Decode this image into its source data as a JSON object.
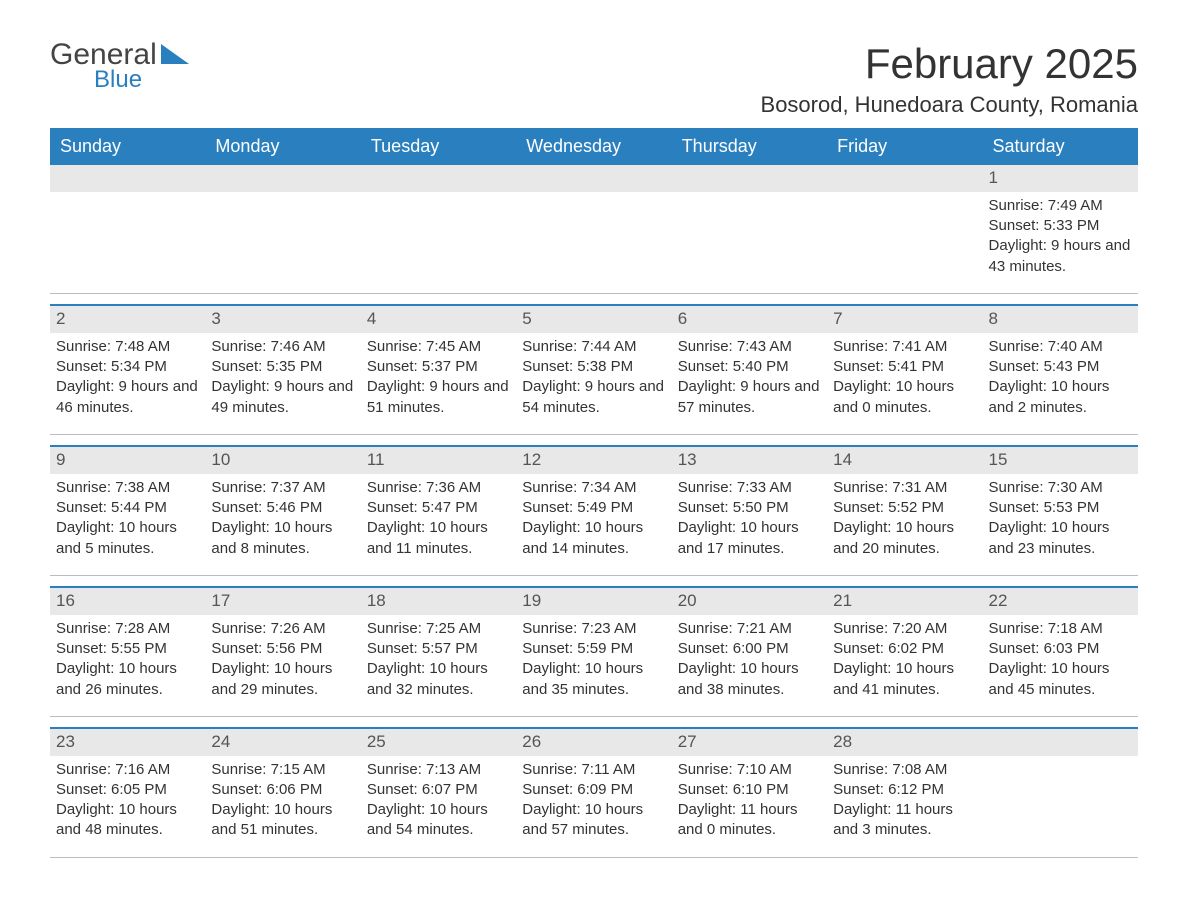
{
  "logo": {
    "text_main": "General",
    "text_sub": "Blue"
  },
  "title": "February 2025",
  "location": "Bosorod, Hunedoara County, Romania",
  "colors": {
    "header_bg": "#2a7fbf",
    "header_text": "#ffffff",
    "daynum_bg": "#e8e8e8",
    "row_border": "#2a7fbf",
    "text": "#333333",
    "background": "#ffffff"
  },
  "day_headers": [
    "Sunday",
    "Monday",
    "Tuesday",
    "Wednesday",
    "Thursday",
    "Friday",
    "Saturday"
  ],
  "weeks": [
    [
      {
        "empty": true
      },
      {
        "empty": true
      },
      {
        "empty": true
      },
      {
        "empty": true
      },
      {
        "empty": true
      },
      {
        "empty": true
      },
      {
        "day": "1",
        "sunrise": "Sunrise: 7:49 AM",
        "sunset": "Sunset: 5:33 PM",
        "daylight": "Daylight: 9 hours and 43 minutes."
      }
    ],
    [
      {
        "day": "2",
        "sunrise": "Sunrise: 7:48 AM",
        "sunset": "Sunset: 5:34 PM",
        "daylight": "Daylight: 9 hours and 46 minutes."
      },
      {
        "day": "3",
        "sunrise": "Sunrise: 7:46 AM",
        "sunset": "Sunset: 5:35 PM",
        "daylight": "Daylight: 9 hours and 49 minutes."
      },
      {
        "day": "4",
        "sunrise": "Sunrise: 7:45 AM",
        "sunset": "Sunset: 5:37 PM",
        "daylight": "Daylight: 9 hours and 51 minutes."
      },
      {
        "day": "5",
        "sunrise": "Sunrise: 7:44 AM",
        "sunset": "Sunset: 5:38 PM",
        "daylight": "Daylight: 9 hours and 54 minutes."
      },
      {
        "day": "6",
        "sunrise": "Sunrise: 7:43 AM",
        "sunset": "Sunset: 5:40 PM",
        "daylight": "Daylight: 9 hours and 57 minutes."
      },
      {
        "day": "7",
        "sunrise": "Sunrise: 7:41 AM",
        "sunset": "Sunset: 5:41 PM",
        "daylight": "Daylight: 10 hours and 0 minutes."
      },
      {
        "day": "8",
        "sunrise": "Sunrise: 7:40 AM",
        "sunset": "Sunset: 5:43 PM",
        "daylight": "Daylight: 10 hours and 2 minutes."
      }
    ],
    [
      {
        "day": "9",
        "sunrise": "Sunrise: 7:38 AM",
        "sunset": "Sunset: 5:44 PM",
        "daylight": "Daylight: 10 hours and 5 minutes."
      },
      {
        "day": "10",
        "sunrise": "Sunrise: 7:37 AM",
        "sunset": "Sunset: 5:46 PM",
        "daylight": "Daylight: 10 hours and 8 minutes."
      },
      {
        "day": "11",
        "sunrise": "Sunrise: 7:36 AM",
        "sunset": "Sunset: 5:47 PM",
        "daylight": "Daylight: 10 hours and 11 minutes."
      },
      {
        "day": "12",
        "sunrise": "Sunrise: 7:34 AM",
        "sunset": "Sunset: 5:49 PM",
        "daylight": "Daylight: 10 hours and 14 minutes."
      },
      {
        "day": "13",
        "sunrise": "Sunrise: 7:33 AM",
        "sunset": "Sunset: 5:50 PM",
        "daylight": "Daylight: 10 hours and 17 minutes."
      },
      {
        "day": "14",
        "sunrise": "Sunrise: 7:31 AM",
        "sunset": "Sunset: 5:52 PM",
        "daylight": "Daylight: 10 hours and 20 minutes."
      },
      {
        "day": "15",
        "sunrise": "Sunrise: 7:30 AM",
        "sunset": "Sunset: 5:53 PM",
        "daylight": "Daylight: 10 hours and 23 minutes."
      }
    ],
    [
      {
        "day": "16",
        "sunrise": "Sunrise: 7:28 AM",
        "sunset": "Sunset: 5:55 PM",
        "daylight": "Daylight: 10 hours and 26 minutes."
      },
      {
        "day": "17",
        "sunrise": "Sunrise: 7:26 AM",
        "sunset": "Sunset: 5:56 PM",
        "daylight": "Daylight: 10 hours and 29 minutes."
      },
      {
        "day": "18",
        "sunrise": "Sunrise: 7:25 AM",
        "sunset": "Sunset: 5:57 PM",
        "daylight": "Daylight: 10 hours and 32 minutes."
      },
      {
        "day": "19",
        "sunrise": "Sunrise: 7:23 AM",
        "sunset": "Sunset: 5:59 PM",
        "daylight": "Daylight: 10 hours and 35 minutes."
      },
      {
        "day": "20",
        "sunrise": "Sunrise: 7:21 AM",
        "sunset": "Sunset: 6:00 PM",
        "daylight": "Daylight: 10 hours and 38 minutes."
      },
      {
        "day": "21",
        "sunrise": "Sunrise: 7:20 AM",
        "sunset": "Sunset: 6:02 PM",
        "daylight": "Daylight: 10 hours and 41 minutes."
      },
      {
        "day": "22",
        "sunrise": "Sunrise: 7:18 AM",
        "sunset": "Sunset: 6:03 PM",
        "daylight": "Daylight: 10 hours and 45 minutes."
      }
    ],
    [
      {
        "day": "23",
        "sunrise": "Sunrise: 7:16 AM",
        "sunset": "Sunset: 6:05 PM",
        "daylight": "Daylight: 10 hours and 48 minutes."
      },
      {
        "day": "24",
        "sunrise": "Sunrise: 7:15 AM",
        "sunset": "Sunset: 6:06 PM",
        "daylight": "Daylight: 10 hours and 51 minutes."
      },
      {
        "day": "25",
        "sunrise": "Sunrise: 7:13 AM",
        "sunset": "Sunset: 6:07 PM",
        "daylight": "Daylight: 10 hours and 54 minutes."
      },
      {
        "day": "26",
        "sunrise": "Sunrise: 7:11 AM",
        "sunset": "Sunset: 6:09 PM",
        "daylight": "Daylight: 10 hours and 57 minutes."
      },
      {
        "day": "27",
        "sunrise": "Sunrise: 7:10 AM",
        "sunset": "Sunset: 6:10 PM",
        "daylight": "Daylight: 11 hours and 0 minutes."
      },
      {
        "day": "28",
        "sunrise": "Sunrise: 7:08 AM",
        "sunset": "Sunset: 6:12 PM",
        "daylight": "Daylight: 11 hours and 3 minutes."
      },
      {
        "empty": true
      }
    ]
  ]
}
